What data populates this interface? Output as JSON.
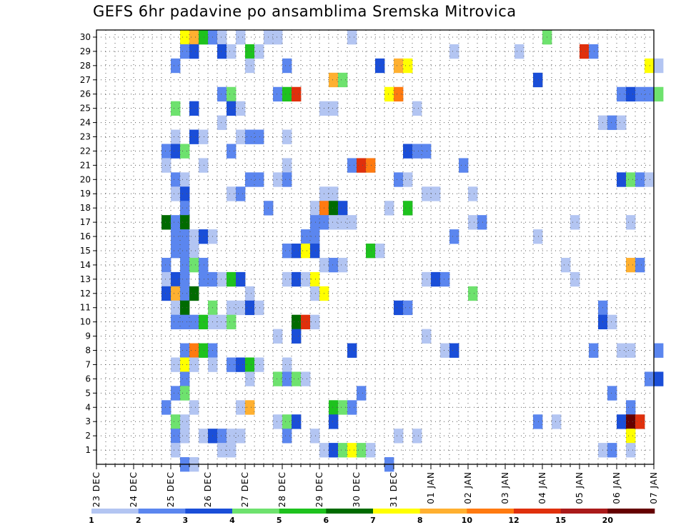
{
  "chart_data": {
    "type": "heatmap",
    "title": "GEFS 6hr padavine po ansamblima Sremska Mitrovica",
    "y_categories": [
      "1",
      "2",
      "3",
      "4",
      "5",
      "6",
      "7",
      "8",
      "9",
      "10",
      "11",
      "12",
      "13",
      "14",
      "15",
      "16",
      "17",
      "18",
      "19",
      "20",
      "21",
      "22",
      "23",
      "24",
      "25",
      "26",
      "27",
      "28",
      "29",
      "30"
    ],
    "x_date_labels": [
      "23 DEC",
      "24 DEC",
      "25 DEC",
      "26 DEC",
      "27 DEC",
      "28 DEC",
      "29 DEC",
      "30 DEC",
      "31 DEC",
      "01 JAN",
      "02 JAN",
      "03 JAN",
      "04 JAN",
      "05 JAN",
      "06 JAN",
      "07 JAN"
    ],
    "time_steps_per_day": 4,
    "x_range_steps": [
      0,
      60
    ],
    "color_scale": {
      "thresholds": [
        1,
        2,
        3,
        4,
        5,
        6,
        7,
        8,
        10,
        12,
        15,
        20
      ],
      "colors": [
        "#b3c5f2",
        "#5b86ef",
        "#1a4ed8",
        "#6ee26e",
        "#1ec21e",
        "#006b00",
        "#ffff00",
        "#ffb030",
        "#ff7a10",
        "#e0300c",
        "#aa1a1a",
        "#650000"
      ]
    },
    "cells": [
      [
        30,
        9,
        6
      ],
      [
        30,
        10,
        7
      ],
      [
        30,
        11,
        4
      ],
      [
        30,
        12,
        1
      ],
      [
        30,
        13,
        0
      ],
      [
        30,
        15,
        0
      ],
      [
        30,
        18,
        0
      ],
      [
        30,
        19,
        0
      ],
      [
        30,
        27,
        0
      ],
      [
        30,
        48,
        3
      ],
      [
        29,
        9,
        1
      ],
      [
        29,
        10,
        2
      ],
      [
        29,
        13,
        2
      ],
      [
        29,
        14,
        0
      ],
      [
        29,
        16,
        4
      ],
      [
        29,
        17,
        0
      ],
      [
        29,
        38,
        0
      ],
      [
        29,
        45,
        0
      ],
      [
        29,
        52,
        9
      ],
      [
        29,
        53,
        1
      ],
      [
        28,
        8,
        1
      ],
      [
        28,
        16,
        0
      ],
      [
        28,
        20,
        1
      ],
      [
        28,
        30,
        2
      ],
      [
        28,
        32,
        7
      ],
      [
        28,
        33,
        6
      ],
      [
        28,
        59,
        6
      ],
      [
        28,
        60,
        0
      ],
      [
        27,
        25,
        7
      ],
      [
        27,
        26,
        3
      ],
      [
        27,
        47,
        2
      ],
      [
        26,
        13,
        1
      ],
      [
        26,
        14,
        3
      ],
      [
        26,
        19,
        1
      ],
      [
        26,
        20,
        4
      ],
      [
        26,
        21,
        9
      ],
      [
        26,
        31,
        6
      ],
      [
        26,
        32,
        8
      ],
      [
        26,
        56,
        1
      ],
      [
        26,
        57,
        2
      ],
      [
        26,
        58,
        1
      ],
      [
        26,
        59,
        1
      ],
      [
        26,
        60,
        3
      ],
      [
        25,
        8,
        3
      ],
      [
        25,
        10,
        2
      ],
      [
        25,
        14,
        2
      ],
      [
        25,
        15,
        0
      ],
      [
        25,
        24,
        0
      ],
      [
        25,
        25,
        0
      ],
      [
        25,
        34,
        0
      ],
      [
        24,
        13,
        0
      ],
      [
        24,
        54,
        0
      ],
      [
        24,
        55,
        1
      ],
      [
        24,
        56,
        0
      ],
      [
        23,
        8,
        0
      ],
      [
        23,
        10,
        2
      ],
      [
        23,
        11,
        0
      ],
      [
        23,
        15,
        0
      ],
      [
        23,
        16,
        1
      ],
      [
        23,
        17,
        1
      ],
      [
        23,
        20,
        0
      ],
      [
        22,
        7,
        1
      ],
      [
        22,
        8,
        2
      ],
      [
        22,
        9,
        3
      ],
      [
        22,
        14,
        1
      ],
      [
        22,
        33,
        2
      ],
      [
        22,
        34,
        1
      ],
      [
        22,
        35,
        1
      ],
      [
        21,
        7,
        0
      ],
      [
        21,
        11,
        0
      ],
      [
        21,
        20,
        0
      ],
      [
        21,
        27,
        1
      ],
      [
        21,
        28,
        9
      ],
      [
        21,
        29,
        8
      ],
      [
        21,
        39,
        1
      ],
      [
        20,
        8,
        1
      ],
      [
        20,
        9,
        0
      ],
      [
        20,
        16,
        1
      ],
      [
        20,
        17,
        1
      ],
      [
        20,
        19,
        0
      ],
      [
        20,
        20,
        1
      ],
      [
        20,
        32,
        1
      ],
      [
        20,
        33,
        0
      ],
      [
        20,
        56,
        2
      ],
      [
        20,
        57,
        3
      ],
      [
        20,
        58,
        1
      ],
      [
        20,
        59,
        0
      ],
      [
        19,
        8,
        0
      ],
      [
        19,
        9,
        2
      ],
      [
        19,
        14,
        0
      ],
      [
        19,
        15,
        1
      ],
      [
        19,
        24,
        0
      ],
      [
        19,
        25,
        0
      ],
      [
        19,
        35,
        0
      ],
      [
        19,
        36,
        0
      ],
      [
        19,
        40,
        0
      ],
      [
        18,
        9,
        1
      ],
      [
        18,
        18,
        1
      ],
      [
        18,
        23,
        0
      ],
      [
        18,
        24,
        8
      ],
      [
        18,
        25,
        5
      ],
      [
        18,
        26,
        2
      ],
      [
        18,
        31,
        0
      ],
      [
        18,
        33,
        4
      ],
      [
        17,
        7,
        5
      ],
      [
        17,
        8,
        1
      ],
      [
        17,
        9,
        5
      ],
      [
        17,
        23,
        1
      ],
      [
        17,
        24,
        1
      ],
      [
        17,
        25,
        0
      ],
      [
        17,
        26,
        0
      ],
      [
        17,
        27,
        0
      ],
      [
        17,
        40,
        0
      ],
      [
        17,
        41,
        1
      ],
      [
        17,
        51,
        0
      ],
      [
        17,
        57,
        0
      ],
      [
        16,
        8,
        1
      ],
      [
        16,
        9,
        1
      ],
      [
        16,
        10,
        0
      ],
      [
        16,
        11,
        2
      ],
      [
        16,
        12,
        0
      ],
      [
        16,
        22,
        1
      ],
      [
        16,
        23,
        1
      ],
      [
        16,
        38,
        1
      ],
      [
        16,
        47,
        0
      ],
      [
        15,
        8,
        1
      ],
      [
        15,
        9,
        1
      ],
      [
        15,
        10,
        0
      ],
      [
        15,
        20,
        1
      ],
      [
        15,
        21,
        2
      ],
      [
        15,
        22,
        6
      ],
      [
        15,
        23,
        2
      ],
      [
        15,
        29,
        4
      ],
      [
        15,
        30,
        0
      ],
      [
        14,
        7,
        1
      ],
      [
        14,
        9,
        1
      ],
      [
        14,
        10,
        3
      ],
      [
        14,
        11,
        1
      ],
      [
        14,
        24,
        0
      ],
      [
        14,
        25,
        1
      ],
      [
        14,
        26,
        0
      ],
      [
        14,
        50,
        0
      ],
      [
        14,
        57,
        7
      ],
      [
        14,
        58,
        1
      ],
      [
        13,
        7,
        0
      ],
      [
        13,
        8,
        2
      ],
      [
        13,
        9,
        1
      ],
      [
        13,
        11,
        1
      ],
      [
        13,
        12,
        1
      ],
      [
        13,
        13,
        0
      ],
      [
        13,
        14,
        4
      ],
      [
        13,
        15,
        2
      ],
      [
        13,
        20,
        0
      ],
      [
        13,
        21,
        2
      ],
      [
        13,
        22,
        0
      ],
      [
        13,
        23,
        6
      ],
      [
        13,
        35,
        0
      ],
      [
        13,
        36,
        2
      ],
      [
        13,
        37,
        1
      ],
      [
        13,
        51,
        0
      ],
      [
        12,
        7,
        2
      ],
      [
        12,
        8,
        7
      ],
      [
        12,
        9,
        1
      ],
      [
        12,
        10,
        5
      ],
      [
        12,
        16,
        0
      ],
      [
        12,
        23,
        0
      ],
      [
        12,
        24,
        6
      ],
      [
        12,
        40,
        3
      ],
      [
        11,
        8,
        0
      ],
      [
        11,
        9,
        5
      ],
      [
        11,
        12,
        3
      ],
      [
        11,
        14,
        0
      ],
      [
        11,
        15,
        0
      ],
      [
        11,
        16,
        2
      ],
      [
        11,
        17,
        0
      ],
      [
        11,
        32,
        2
      ],
      [
        11,
        33,
        1
      ],
      [
        11,
        54,
        1
      ],
      [
        10,
        8,
        1
      ],
      [
        10,
        9,
        1
      ],
      [
        10,
        10,
        1
      ],
      [
        10,
        11,
        4
      ],
      [
        10,
        12,
        0
      ],
      [
        10,
        13,
        0
      ],
      [
        10,
        14,
        3
      ],
      [
        10,
        21,
        5
      ],
      [
        10,
        22,
        9
      ],
      [
        10,
        23,
        0
      ],
      [
        10,
        54,
        2
      ],
      [
        10,
        55,
        0
      ],
      [
        9,
        19,
        0
      ],
      [
        9,
        21,
        2
      ],
      [
        9,
        35,
        0
      ],
      [
        8,
        9,
        1
      ],
      [
        8,
        10,
        8
      ],
      [
        8,
        11,
        4
      ],
      [
        8,
        12,
        1
      ],
      [
        8,
        27,
        2
      ],
      [
        8,
        37,
        0
      ],
      [
        8,
        38,
        2
      ],
      [
        8,
        53,
        1
      ],
      [
        8,
        56,
        0
      ],
      [
        8,
        57,
        0
      ],
      [
        8,
        60,
        1
      ],
      [
        7,
        8,
        0
      ],
      [
        7,
        9,
        6
      ],
      [
        7,
        10,
        0
      ],
      [
        7,
        12,
        0
      ],
      [
        7,
        14,
        1
      ],
      [
        7,
        15,
        2
      ],
      [
        7,
        16,
        4
      ],
      [
        7,
        17,
        0
      ],
      [
        7,
        20,
        0
      ],
      [
        6,
        9,
        1
      ],
      [
        6,
        16,
        0
      ],
      [
        6,
        19,
        3
      ],
      [
        6,
        20,
        1
      ],
      [
        6,
        21,
        3
      ],
      [
        6,
        22,
        0
      ],
      [
        6,
        59,
        1
      ],
      [
        6,
        60,
        2
      ],
      [
        5,
        8,
        1
      ],
      [
        5,
        9,
        3
      ],
      [
        5,
        28,
        1
      ],
      [
        5,
        55,
        1
      ],
      [
        4,
        7,
        1
      ],
      [
        4,
        10,
        0
      ],
      [
        4,
        15,
        0
      ],
      [
        4,
        16,
        7
      ],
      [
        4,
        25,
        4
      ],
      [
        4,
        26,
        3
      ],
      [
        4,
        27,
        1
      ],
      [
        4,
        57,
        1
      ],
      [
        3,
        8,
        3
      ],
      [
        3,
        9,
        0
      ],
      [
        3,
        19,
        0
      ],
      [
        3,
        20,
        3
      ],
      [
        3,
        21,
        2
      ],
      [
        3,
        25,
        2
      ],
      [
        3,
        47,
        1
      ],
      [
        3,
        49,
        0
      ],
      [
        3,
        56,
        2
      ],
      [
        3,
        57,
        11
      ],
      [
        3,
        58,
        9
      ],
      [
        2,
        8,
        1
      ],
      [
        2,
        9,
        0
      ],
      [
        2,
        11,
        0
      ],
      [
        2,
        12,
        2
      ],
      [
        2,
        13,
        1
      ],
      [
        2,
        14,
        0
      ],
      [
        2,
        15,
        0
      ],
      [
        2,
        20,
        1
      ],
      [
        2,
        23,
        0
      ],
      [
        2,
        32,
        0
      ],
      [
        2,
        34,
        0
      ],
      [
        2,
        57,
        6
      ],
      [
        1,
        8,
        0
      ],
      [
        1,
        13,
        0
      ],
      [
        1,
        14,
        0
      ],
      [
        1,
        24,
        0
      ],
      [
        1,
        25,
        2
      ],
      [
        1,
        26,
        3
      ],
      [
        1,
        27,
        6
      ],
      [
        1,
        28,
        3
      ],
      [
        1,
        29,
        0
      ],
      [
        1,
        54,
        0
      ],
      [
        1,
        55,
        1
      ],
      [
        1,
        57,
        0
      ],
      [
        0,
        9,
        1
      ],
      [
        0,
        10,
        0
      ],
      [
        0,
        31,
        1
      ]
    ]
  }
}
